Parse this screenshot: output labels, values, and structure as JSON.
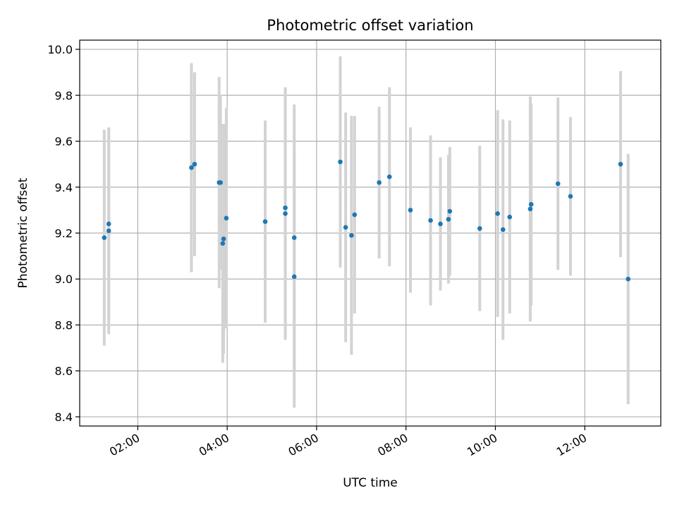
{
  "chart_data": {
    "type": "scatter",
    "title": "Photometric offset variation",
    "xlabel": "UTC time",
    "ylabel": "Photometric offset",
    "xlim": [
      0.7,
      13.7
    ],
    "ylim": [
      8.36,
      10.04
    ],
    "grid": true,
    "x_ticks": [
      {
        "value": 2,
        "label": "02:00"
      },
      {
        "value": 4,
        "label": "04:00"
      },
      {
        "value": 6,
        "label": "06:00"
      },
      {
        "value": 8,
        "label": "08:00"
      },
      {
        "value": 10,
        "label": "10:00"
      },
      {
        "value": 12,
        "label": "12:00"
      }
    ],
    "y_ticks": [
      {
        "value": 8.4,
        "label": "8.4"
      },
      {
        "value": 8.6,
        "label": "8.6"
      },
      {
        "value": 8.8,
        "label": "8.8"
      },
      {
        "value": 9.0,
        "label": "9.0"
      },
      {
        "value": 9.2,
        "label": "9.2"
      },
      {
        "value": 9.4,
        "label": "9.4"
      },
      {
        "value": 9.6,
        "label": "9.6"
      },
      {
        "value": 9.8,
        "label": "9.8"
      },
      {
        "value": 10.0,
        "label": "10.0"
      }
    ],
    "marker_color": "#1f77b4",
    "errorbar_color": "#d3d3d3",
    "points": [
      {
        "x": 1.25,
        "y": 9.18,
        "err": 0.47
      },
      {
        "x": 1.35,
        "y": 9.21,
        "err": 0.45
      },
      {
        "x": 1.35,
        "y": 9.24,
        "err": 0.42
      },
      {
        "x": 3.2,
        "y": 9.485,
        "err": 0.455
      },
      {
        "x": 3.27,
        "y": 9.5,
        "err": 0.4
      },
      {
        "x": 3.82,
        "y": 9.42,
        "err": 0.46
      },
      {
        "x": 3.85,
        "y": 9.42,
        "err": 0.38
      },
      {
        "x": 3.9,
        "y": 9.155,
        "err": 0.52
      },
      {
        "x": 3.92,
        "y": 9.175,
        "err": 0.5
      },
      {
        "x": 3.98,
        "y": 9.265,
        "err": 0.48
      },
      {
        "x": 4.85,
        "y": 9.25,
        "err": 0.44
      },
      {
        "x": 5.3,
        "y": 9.31,
        "err": 0.52
      },
      {
        "x": 5.3,
        "y": 9.285,
        "err": 0.55
      },
      {
        "x": 5.5,
        "y": 9.18,
        "err": 0.58
      },
      {
        "x": 5.5,
        "y": 9.01,
        "err": 0.57
      },
      {
        "x": 6.53,
        "y": 9.51,
        "err": 0.46
      },
      {
        "x": 6.65,
        "y": 9.225,
        "err": 0.5
      },
      {
        "x": 6.78,
        "y": 9.19,
        "err": 0.52
      },
      {
        "x": 6.85,
        "y": 9.28,
        "err": 0.43
      },
      {
        "x": 7.4,
        "y": 9.42,
        "err": 0.33
      },
      {
        "x": 7.63,
        "y": 9.445,
        "err": 0.39
      },
      {
        "x": 8.1,
        "y": 9.3,
        "err": 0.36
      },
      {
        "x": 8.55,
        "y": 9.255,
        "err": 0.37
      },
      {
        "x": 8.77,
        "y": 9.24,
        "err": 0.29
      },
      {
        "x": 8.95,
        "y": 9.26,
        "err": 0.28
      },
      {
        "x": 8.98,
        "y": 9.295,
        "err": 0.28
      },
      {
        "x": 9.65,
        "y": 9.22,
        "err": 0.36
      },
      {
        "x": 10.05,
        "y": 9.285,
        "err": 0.45
      },
      {
        "x": 10.17,
        "y": 9.215,
        "err": 0.48
      },
      {
        "x": 10.32,
        "y": 9.27,
        "err": 0.42
      },
      {
        "x": 10.78,
        "y": 9.305,
        "err": 0.49
      },
      {
        "x": 10.8,
        "y": 9.325,
        "err": 0.44
      },
      {
        "x": 11.4,
        "y": 9.415,
        "err": 0.375
      },
      {
        "x": 11.68,
        "y": 9.36,
        "err": 0.345
      },
      {
        "x": 12.8,
        "y": 9.5,
        "err": 0.405
      },
      {
        "x": 12.97,
        "y": 9.0,
        "err": 0.545
      }
    ]
  }
}
